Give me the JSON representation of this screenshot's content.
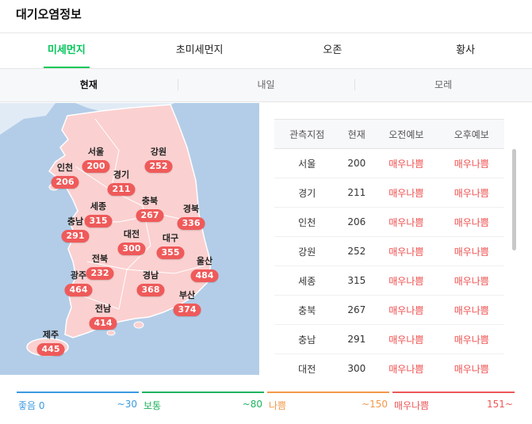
{
  "title": "대기오염정보",
  "main_tabs": [
    "미세먼지",
    "초미세먼지",
    "오존",
    "황사"
  ],
  "sub_tabs": [
    "현재",
    "내일",
    "모레"
  ],
  "map_regions": [
    {
      "name": "서울",
      "value": "200"
    },
    {
      "name": "강원",
      "value": "252"
    },
    {
      "name": "인천",
      "value": "206"
    },
    {
      "name": "경기",
      "value": "211"
    },
    {
      "name": "세종",
      "value": "315"
    },
    {
      "name": "충북",
      "value": "267"
    },
    {
      "name": "경북",
      "value": "336"
    },
    {
      "name": "충남",
      "value": "291"
    },
    {
      "name": "대전",
      "value": "300"
    },
    {
      "name": "대구",
      "value": "355"
    },
    {
      "name": "전북",
      "value": "232"
    },
    {
      "name": "울산",
      "value": "484"
    },
    {
      "name": "광주",
      "value": "464"
    },
    {
      "name": "경남",
      "value": "368"
    },
    {
      "name": "부산",
      "value": "374"
    },
    {
      "name": "전남",
      "value": "414"
    },
    {
      "name": "제주",
      "value": "445"
    }
  ],
  "table": {
    "headers": [
      "관측지점",
      "현재",
      "오전예보",
      "오후예보"
    ],
    "rows": [
      {
        "site": "서울",
        "current": "200",
        "am": "매우나쁨",
        "pm": "매우나쁨"
      },
      {
        "site": "경기",
        "current": "211",
        "am": "매우나쁨",
        "pm": "매우나쁨"
      },
      {
        "site": "인천",
        "current": "206",
        "am": "매우나쁨",
        "pm": "매우나쁨"
      },
      {
        "site": "강원",
        "current": "252",
        "am": "매우나쁨",
        "pm": "매우나쁨"
      },
      {
        "site": "세종",
        "current": "315",
        "am": "매우나쁨",
        "pm": "매우나쁨"
      },
      {
        "site": "충북",
        "current": "267",
        "am": "매우나쁨",
        "pm": "매우나쁨"
      },
      {
        "site": "충남",
        "current": "291",
        "am": "매우나쁨",
        "pm": "매우나쁨"
      },
      {
        "site": "대전",
        "current": "300",
        "am": "매우나쁨",
        "pm": "매우나쁨"
      }
    ]
  },
  "legend": [
    {
      "label": "좋음 0",
      "range": "~30",
      "color": "#3b9ae1"
    },
    {
      "label": "보통",
      "range": "~80",
      "color": "#1fb35e"
    },
    {
      "label": "나쁨",
      "range": "~150",
      "color": "#f2994a"
    },
    {
      "label": "매우나쁨",
      "range": "151~",
      "color": "#eb5757"
    }
  ],
  "colors": {
    "accent": "#03c75a",
    "very_bad": "#ef5a5a",
    "map_sea": "#b3cde8",
    "map_land": "#fbd0d0"
  }
}
